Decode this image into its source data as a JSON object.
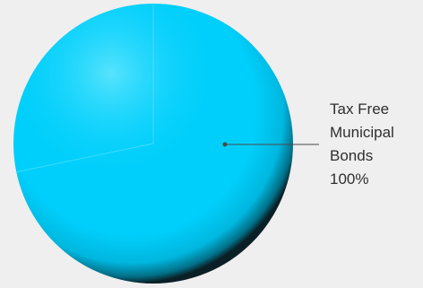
{
  "chart_data": {
    "type": "pie",
    "series": [
      {
        "slices": [
          {
            "label_lines": [
              "Tax Free",
              "Municipal",
              "Bonds"
            ],
            "percent_label": "100%",
            "value": 100,
            "color": "#00cffb"
          }
        ]
      }
    ]
  },
  "colors": {
    "background": "#efefef",
    "slice_main": "#00cffb",
    "slice_highlight": "#8ff0ff",
    "slice_shadow": "#1a1a1a",
    "leader_line": "#4a4a4a"
  }
}
